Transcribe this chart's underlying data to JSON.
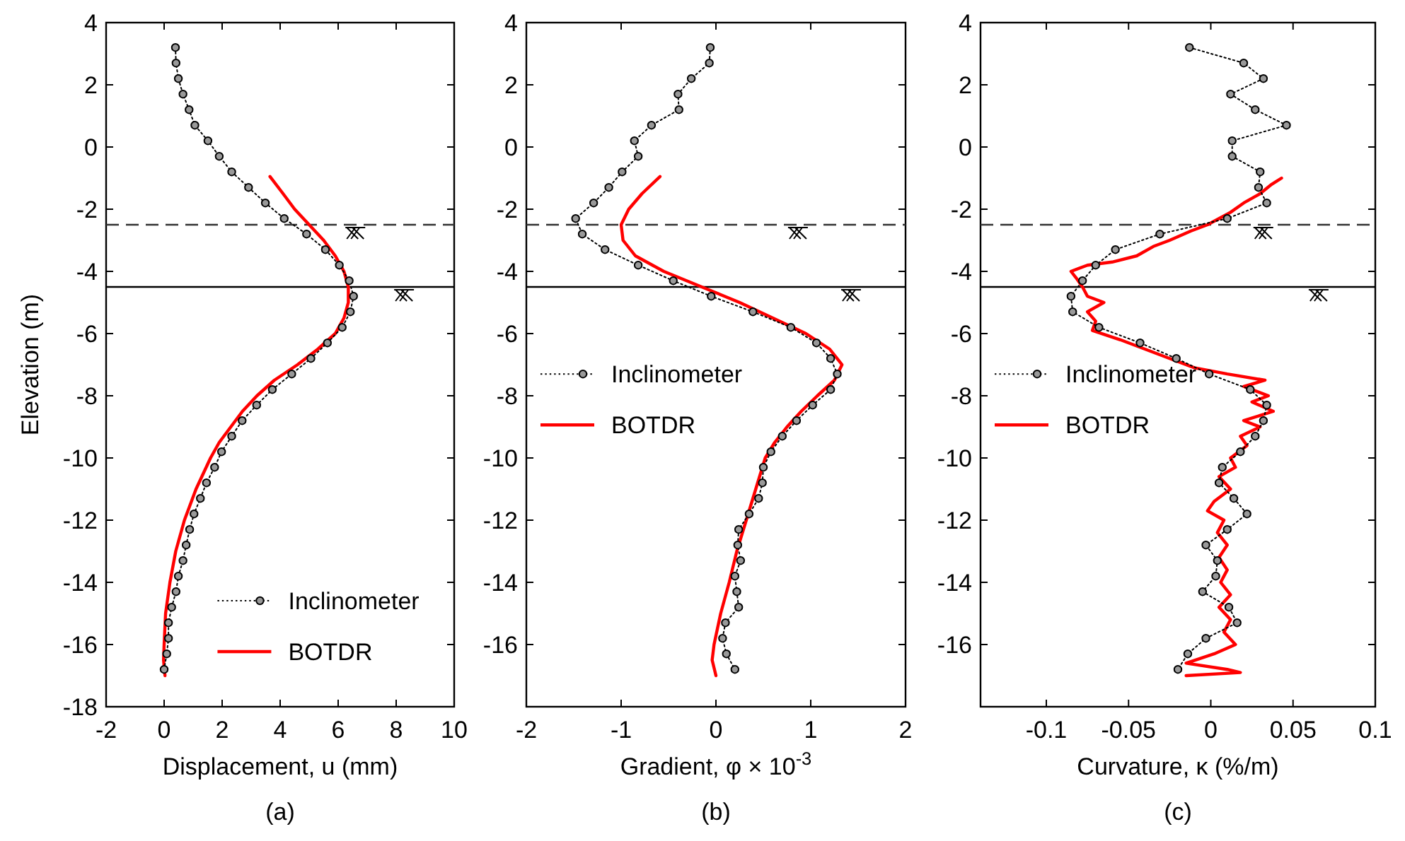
{
  "chart_data": [
    {
      "type": "line",
      "xlabel": "Displacement, u (mm)",
      "ylabel": "Elevation (m)",
      "annotations": [
        "(a)"
      ],
      "xlim": [
        -2,
        10
      ],
      "xticks": [
        -2,
        0,
        2,
        4,
        6,
        8,
        10
      ],
      "ylim": [
        -18,
        4
      ],
      "yticks": [
        -18,
        -16,
        -14,
        -12,
        -10,
        -8,
        -6,
        -4,
        -2,
        0,
        2,
        4
      ],
      "legend": "bottom right",
      "grid": false,
      "ref_lines": [
        {
          "axis": "y",
          "value": -2.5,
          "line_style": "dashed",
          "color": "#333333"
        },
        {
          "axis": "y",
          "value": -4.5,
          "line_style": "solid",
          "color": "#000000"
        }
      ],
      "series": [
        {
          "name": "Inclinometer",
          "color": "#000000",
          "marker": "circle",
          "line_style": "dotted",
          "x": [
            0.39,
            0.41,
            0.49,
            0.65,
            0.86,
            1.06,
            1.51,
            1.9,
            2.33,
            2.91,
            3.49,
            4.14,
            4.91,
            5.56,
            6.04,
            6.38,
            6.53,
            6.42,
            6.14,
            5.63,
            5.06,
            4.4,
            3.73,
            3.19,
            2.69,
            2.33,
            1.98,
            1.74,
            1.46,
            1.25,
            1.03,
            0.88,
            0.76,
            0.65,
            0.49,
            0.41,
            0.26,
            0.15,
            0.15,
            0.09,
            0.0
          ],
          "values": [
            3.2,
            2.7,
            2.2,
            1.7,
            1.2,
            0.7,
            0.2,
            -0.3,
            -0.8,
            -1.3,
            -1.8,
            -2.3,
            -2.8,
            -3.3,
            -3.8,
            -4.3,
            -4.8,
            -5.3,
            -5.8,
            -6.3,
            -6.8,
            -7.3,
            -7.8,
            -8.3,
            -8.8,
            -9.3,
            -9.8,
            -10.3,
            -10.8,
            -11.3,
            -11.8,
            -12.3,
            -12.8,
            -13.3,
            -13.8,
            -14.3,
            -14.8,
            -15.3,
            -15.8,
            -16.3,
            -16.8
          ]
        },
        {
          "name": "BOTDR",
          "color": "#ff0000",
          "marker": "none",
          "line_style": "solid",
          "x": [
            3.65,
            4.1,
            4.5,
            5.0,
            5.5,
            5.9,
            6.2,
            6.35,
            6.35,
            6.2,
            5.9,
            5.3,
            4.6,
            3.8,
            3.2,
            2.7,
            2.3,
            1.9,
            1.6,
            1.1,
            0.7,
            0.4,
            0.2,
            0.05,
            0.0,
            -0.02,
            0.03
          ],
          "values": [
            -0.95,
            -1.5,
            -2,
            -2.5,
            -3,
            -3.5,
            -4,
            -4.5,
            -5,
            -5.5,
            -6,
            -6.5,
            -7,
            -7.5,
            -8,
            -8.5,
            -9,
            -9.5,
            -10,
            -11,
            -12,
            -13,
            -14,
            -15,
            -16,
            -16.5,
            -17
          ]
        }
      ]
    },
    {
      "type": "line",
      "xlabel": "Gradient, φ  × 10$^{-3}$",
      "annotations": [
        "(b)"
      ],
      "xlim": [
        -2,
        2
      ],
      "xticks": [
        -2,
        -1,
        0,
        1,
        2
      ],
      "ylim": [
        -18,
        4
      ],
      "yticks": [
        -16,
        -14,
        -12,
        -10,
        -8,
        -6,
        -4,
        -2,
        0,
        2,
        4
      ],
      "legend": "left",
      "grid": false,
      "ref_lines": [
        {
          "axis": "y",
          "value": -2.5,
          "line_style": "dashed",
          "color": "#333333"
        },
        {
          "axis": "y",
          "value": -4.5,
          "line_style": "solid",
          "color": "#000000"
        }
      ],
      "series": [
        {
          "name": "Inclinometer",
          "color": "#000000",
          "marker": "circle",
          "line_style": "dotted",
          "x": [
            -0.06,
            -0.07,
            -0.26,
            -0.4,
            -0.39,
            -0.68,
            -0.86,
            -0.82,
            -0.99,
            -1.13,
            -1.29,
            -1.48,
            -1.41,
            -1.17,
            -0.82,
            -0.45,
            -0.05,
            0.39,
            0.79,
            1.06,
            1.21,
            1.28,
            1.21,
            1.02,
            0.85,
            0.7,
            0.58,
            0.5,
            0.49,
            0.45,
            0.35,
            0.24,
            0.23,
            0.26,
            0.2,
            0.22,
            0.24,
            0.1,
            0.07,
            0.11,
            0.2
          ],
          "values": [
            3.2,
            2.7,
            2.2,
            1.7,
            1.2,
            0.7,
            0.2,
            -0.3,
            -0.8,
            -1.3,
            -1.8,
            -2.3,
            -2.8,
            -3.3,
            -3.8,
            -4.3,
            -4.8,
            -5.3,
            -5.8,
            -6.3,
            -6.8,
            -7.3,
            -7.8,
            -8.3,
            -8.8,
            -9.3,
            -9.8,
            -10.3,
            -10.8,
            -11.3,
            -11.8,
            -12.3,
            -12.8,
            -13.3,
            -13.8,
            -14.3,
            -14.8,
            -15.3,
            -15.8,
            -16.3,
            -16.8
          ]
        },
        {
          "name": "BOTDR",
          "color": "#ff0000",
          "marker": "none",
          "line_style": "solid",
          "x": [
            -0.59,
            -0.78,
            -0.92,
            -1.0,
            -0.98,
            -0.85,
            -0.55,
            -0.15,
            0.25,
            0.6,
            0.95,
            1.2,
            1.33,
            1.25,
            1.07,
            0.9,
            0.75,
            0.62,
            0.52,
            0.42,
            0.32,
            0.22,
            0.14,
            0.05,
            -0.02,
            -0.04,
            0.0
          ],
          "values": [
            -0.95,
            -1.5,
            -2,
            -2.5,
            -3,
            -3.5,
            -4,
            -4.5,
            -5,
            -5.5,
            -6,
            -6.5,
            -7,
            -7.5,
            -8,
            -8.5,
            -9,
            -9.5,
            -10,
            -11,
            -12,
            -13,
            -14,
            -15,
            -16,
            -16.5,
            -17
          ]
        }
      ]
    },
    {
      "type": "line",
      "xlabel": "Curvature, κ  (%/m)",
      "annotations": [
        "(c)"
      ],
      "xlim": [
        -0.14,
        0.1
      ],
      "xticks": [
        -0.1,
        -0.05,
        0,
        0.05,
        0.1
      ],
      "ylim": [
        -18,
        4
      ],
      "yticks": [
        -16,
        -14,
        -12,
        -10,
        -8,
        -6,
        -4,
        -2,
        0,
        2,
        4
      ],
      "legend": "left",
      "grid": false,
      "ref_lines": [
        {
          "axis": "y",
          "value": -2.5,
          "line_style": "dashed",
          "color": "#333333"
        },
        {
          "axis": "y",
          "value": -4.5,
          "line_style": "solid",
          "color": "#000000"
        }
      ],
      "series": [
        {
          "name": "Inclinometer",
          "color": "#000000",
          "marker": "circle",
          "line_style": "dotted",
          "x": [
            -0.013,
            0.02,
            0.032,
            0.012,
            0.027,
            0.046,
            0.013,
            0.013,
            0.03,
            0.029,
            0.034,
            0.01,
            -0.031,
            -0.058,
            -0.07,
            -0.078,
            -0.085,
            -0.084,
            -0.068,
            -0.043,
            -0.021,
            -0.001,
            0.024,
            0.034,
            0.032,
            0.027,
            0.018,
            0.007,
            0.005,
            0.014,
            0.022,
            0.01,
            -0.003,
            0.004,
            0.003,
            -0.005,
            0.011,
            0.016,
            -0.003,
            -0.014,
            -0.02
          ],
          "values": [
            3.2,
            2.7,
            2.2,
            1.7,
            1.2,
            0.7,
            0.2,
            -0.3,
            -0.8,
            -1.3,
            -1.8,
            -2.3,
            -2.8,
            -3.3,
            -3.8,
            -4.3,
            -4.8,
            -5.3,
            -5.8,
            -6.3,
            -6.8,
            -7.3,
            -7.8,
            -8.3,
            -8.8,
            -9.3,
            -9.8,
            -10.3,
            -10.8,
            -11.3,
            -11.8,
            -12.3,
            -12.8,
            -13.3,
            -13.8,
            -14.3,
            -14.8,
            -15.3,
            -15.8,
            -16.3,
            -16.8
          ]
        },
        {
          "name": "BOTDR",
          "color": "#ff0000",
          "marker": "none",
          "line_style": "solid",
          "x": [
            0.043,
            0.037,
            0.03,
            0.02,
            0.012,
            0.005,
            -0.002,
            -0.012,
            -0.025,
            -0.035,
            -0.045,
            -0.06,
            -0.075,
            -0.085,
            -0.082,
            -0.078,
            -0.075,
            -0.065,
            -0.075,
            -0.07,
            -0.072,
            -0.055,
            -0.04,
            -0.025,
            -0.01,
            0.01,
            0.033,
            0.02,
            0.035,
            0.025,
            0.038,
            0.02,
            0.03,
            0.018,
            0.022,
            0.012,
            0.015,
            0.005,
            0.012,
            0.002,
            -0.002,
            0.008,
            0.004,
            0.01,
            0.005,
            0.01,
            0.006,
            0.012,
            0.005,
            0.012,
            0.008,
            0.015,
            0.002,
            -0.015,
            0.01,
            0.018,
            -0.015
          ],
          "values": [
            -1.0,
            -1.2,
            -1.5,
            -1.8,
            -2.1,
            -2.3,
            -2.5,
            -2.7,
            -3.0,
            -3.2,
            -3.5,
            -3.7,
            -3.8,
            -4.0,
            -4.2,
            -4.5,
            -4.8,
            -5.0,
            -5.3,
            -5.6,
            -5.9,
            -6.2,
            -6.5,
            -6.8,
            -7.1,
            -7.3,
            -7.5,
            -7.7,
            -8.0,
            -8.2,
            -8.5,
            -8.8,
            -9.0,
            -9.3,
            -9.6,
            -10.0,
            -10.3,
            -10.6,
            -11.0,
            -11.4,
            -11.7,
            -12.0,
            -12.4,
            -12.8,
            -13.2,
            -13.6,
            -14.0,
            -14.4,
            -14.8,
            -15.2,
            -15.6,
            -16.0,
            -16.3,
            -16.6,
            -16.8,
            -16.9,
            -17.0
          ]
        }
      ]
    }
  ]
}
